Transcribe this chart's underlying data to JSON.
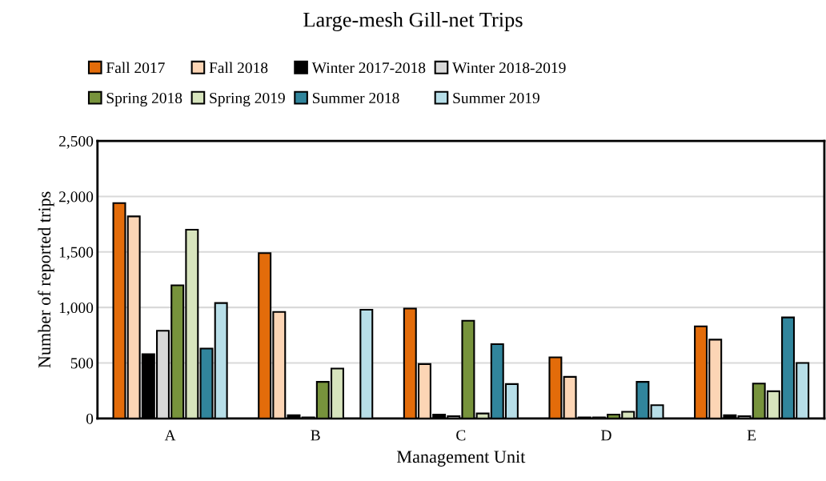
{
  "chart_data": {
    "type": "bar",
    "title": "Large-mesh Gill-net Trips",
    "xlabel": "Management Unit",
    "ylabel": "Number of reported trips",
    "categories": [
      "A",
      "B",
      "C",
      "D",
      "E"
    ],
    "series": [
      {
        "name": "Fall 2017",
        "color": "#e36c0a",
        "values": [
          1940,
          1490,
          990,
          550,
          830
        ]
      },
      {
        "name": "Fall 2018",
        "color": "#fcd5b5",
        "values": [
          1820,
          960,
          490,
          375,
          710
        ]
      },
      {
        "name": "Winter 2017-2018",
        "color": "#000000",
        "values": [
          580,
          30,
          35,
          10,
          30
        ]
      },
      {
        "name": "Winter 2018-2019",
        "color": "#d9d9d9",
        "values": [
          790,
          10,
          20,
          10,
          20
        ]
      },
      {
        "name": "Spring 2018",
        "color": "#77933c",
        "values": [
          1200,
          330,
          880,
          35,
          315
        ]
      },
      {
        "name": "Spring 2019",
        "color": "#d7e4bd",
        "values": [
          1700,
          450,
          45,
          60,
          245
        ]
      },
      {
        "name": "Summer 2018",
        "color": "#31859c",
        "values": [
          630,
          null,
          670,
          330,
          910
        ]
      },
      {
        "name": "Summer 2019",
        "color": "#b7dee8",
        "values": [
          1040,
          980,
          310,
          120,
          500
        ]
      }
    ],
    "ylim": [
      0,
      2500
    ],
    "yticks": [
      {
        "value": 0,
        "label": "0"
      },
      {
        "value": 500,
        "label": "500"
      },
      {
        "value": 1000,
        "label": "1,000"
      },
      {
        "value": 1500,
        "label": "1,500"
      },
      {
        "value": 2000,
        "label": "2,000"
      },
      {
        "value": 2500,
        "label": "2,500"
      }
    ],
    "grid": "y",
    "legend": "top"
  }
}
